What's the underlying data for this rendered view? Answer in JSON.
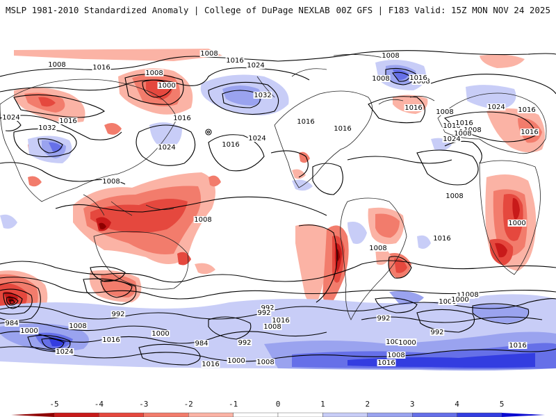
{
  "header": {
    "left": "MSLP 1981-2010 Standardized Anomaly | College of DuPage NEXLAB",
    "right": "00Z GFS | F183 Valid: 15Z MON NOV 24 2025"
  },
  "colors": {
    "neg5": "#8e0000",
    "neg4": "#c81a1a",
    "neg3": "#e5483e",
    "neg2": "#f27c6c",
    "neg1": "#fbb3a5",
    "zero": "#ffffff",
    "pos1": "#c8cdf7",
    "pos2": "#9aa3ef",
    "pos3": "#6670e8",
    "pos4": "#333de0",
    "pos5": "#0a0ad0",
    "land_line": "#222222",
    "isobar": "#000000"
  },
  "colorbar": {
    "ticks": [
      "-5",
      "-4",
      "-3",
      "-2",
      "-1",
      "0",
      "1",
      "2",
      "3",
      "4",
      "5"
    ]
  },
  "isobar_labels": [
    {
      "text": "1008"
    },
    {
      "text": "1016"
    },
    {
      "text": "1024"
    },
    {
      "text": "1008"
    },
    {
      "text": "1000"
    },
    {
      "text": "1008"
    },
    {
      "text": "1016"
    },
    {
      "text": "1024"
    },
    {
      "text": "1032"
    },
    {
      "text": "1016"
    },
    {
      "text": "1024"
    },
    {
      "text": "1016"
    },
    {
      "text": "1032"
    },
    {
      "text": "1016"
    },
    {
      "text": "1016"
    },
    {
      "text": "1024"
    },
    {
      "text": "1016"
    },
    {
      "text": "1016"
    },
    {
      "text": "1008"
    },
    {
      "text": "1008"
    },
    {
      "text": "1016"
    },
    {
      "text": "1016"
    },
    {
      "text": "1008"
    },
    {
      "text": "1016"
    },
    {
      "text": "1008"
    },
    {
      "text": "1008"
    },
    {
      "text": "1008"
    },
    {
      "text": "1008"
    },
    {
      "text": "1000"
    },
    {
      "text": "992"
    },
    {
      "text": "984"
    },
    {
      "text": "1000"
    },
    {
      "text": "1008"
    },
    {
      "text": "1016"
    },
    {
      "text": "1024"
    },
    {
      "text": "992"
    },
    {
      "text": "1000"
    },
    {
      "text": "1008"
    },
    {
      "text": "1016"
    },
    {
      "text": "992"
    },
    {
      "text": "984"
    },
    {
      "text": "992"
    },
    {
      "text": "1000"
    },
    {
      "text": "1008"
    },
    {
      "text": "1016"
    },
    {
      "text": "992"
    },
    {
      "text": "1008"
    },
    {
      "text": "1000"
    },
    {
      "text": "1008"
    },
    {
      "text": "1000"
    },
    {
      "text": "1016"
    },
    {
      "text": "1008"
    },
    {
      "text": "992"
    },
    {
      "text": "1000"
    },
    {
      "text": "1008"
    },
    {
      "text": "1016"
    },
    {
      "text": "1008"
    },
    {
      "text": "1000"
    },
    {
      "text": "1016"
    },
    {
      "text": "1008"
    },
    {
      "text": "1024"
    },
    {
      "text": "1016"
    },
    {
      "text": "1008"
    },
    {
      "text": "1016"
    },
    {
      "text": "1024"
    }
  ]
}
